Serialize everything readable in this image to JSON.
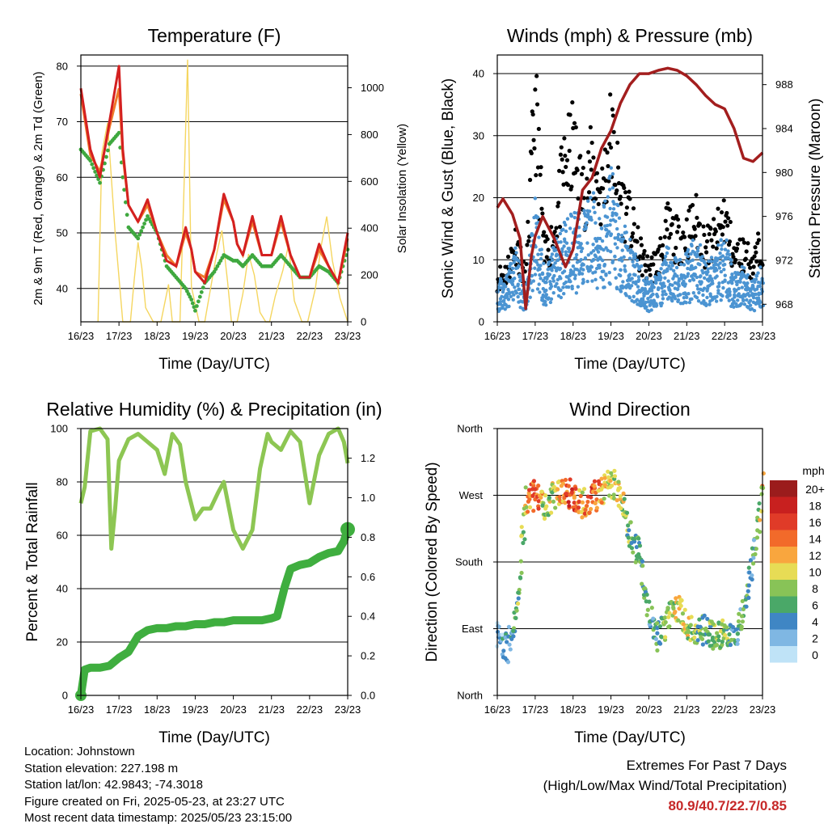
{
  "time_axis": {
    "ticks": [
      "16/23",
      "17/23",
      "18/23",
      "19/23",
      "20/23",
      "21/23",
      "22/23",
      "23/23"
    ],
    "xlabel": "Time (Day/UTC)"
  },
  "speed_legend": {
    "title": "mph",
    "labels": [
      "20+",
      "18",
      "16",
      "14",
      "12",
      "10",
      "8",
      "6",
      "4",
      "2",
      "0"
    ],
    "colors": [
      "#9b1c1c",
      "#c8201f",
      "#e03b28",
      "#f26a2a",
      "#f9a63e",
      "#e7dc55",
      "#88c357",
      "#4aa868",
      "#3f86c4",
      "#7fb7e3",
      "#bfe3f7"
    ]
  },
  "charts": [
    {
      "type": "line",
      "title": "Temperature (F)",
      "ylabel": "2m & 9m T (Red, Orange) & 2m Td (Green)",
      "y2label": "Solar Insolation (Yellow)",
      "ylim": [
        34,
        82
      ],
      "yticks": [
        40,
        50,
        60,
        70,
        80
      ],
      "y2lim": [
        0,
        1140
      ],
      "y2ticks": [
        0,
        200,
        400,
        600,
        800,
        1000
      ],
      "x": [
        0.0,
        0.25,
        0.5,
        0.75,
        1.0,
        1.1,
        1.25,
        1.5,
        1.75,
        2.0,
        2.25,
        2.5,
        2.75,
        2.9,
        3.0,
        3.25,
        3.5,
        3.75,
        4.0,
        4.1,
        4.25,
        4.5,
        4.75,
        5.0,
        5.25,
        5.5,
        5.75,
        6.0,
        6.25,
        6.5,
        6.75,
        7.0
      ],
      "series": [
        {
          "name": "2m T",
          "color": "#d42020",
          "values": [
            76,
            65,
            60,
            70,
            80,
            65,
            55,
            52,
            56,
            50,
            45,
            44,
            51,
            47,
            43,
            41,
            47,
            57,
            52,
            48,
            46,
            53,
            46,
            46,
            53,
            46,
            42,
            42,
            48,
            44,
            41,
            50
          ]
        },
        {
          "name": "9m T",
          "color": "#f07a2a",
          "values": [
            75,
            64,
            61,
            69,
            76,
            64,
            55,
            52,
            55,
            50,
            46,
            44,
            50,
            47,
            43,
            42,
            47,
            56,
            52,
            48,
            46,
            52,
            46,
            46,
            52,
            46,
            42,
            42,
            47,
            44,
            41,
            49
          ]
        },
        {
          "name": "2m Td",
          "color": "#3fa83f",
          "values": [
            65,
            63,
            59,
            66,
            68,
            60,
            51,
            49,
            53,
            50,
            44,
            42,
            40,
            38,
            36,
            41,
            43,
            46,
            45,
            45,
            44,
            46,
            44,
            44,
            46,
            44,
            42,
            42,
            44,
            43,
            41,
            47
          ]
        },
        {
          "name": "Solar Insolation",
          "color": "#f5d660",
          "axis": "y2",
          "x": [
            0.45,
            0.55,
            0.7,
            0.9,
            1.1,
            1.3,
            1.4,
            1.5,
            1.6,
            1.7,
            1.9,
            2.1,
            2.3,
            2.4,
            2.6,
            2.7,
            2.8,
            2.9,
            3.1,
            3.25,
            3.4,
            3.55,
            3.7,
            3.85,
            3.95,
            4.1,
            4.25,
            4.4,
            4.55,
            4.7,
            4.85,
            4.95,
            5.1,
            5.3,
            5.45,
            5.6,
            5.8,
            5.95,
            6.15,
            6.3,
            6.45,
            6.6,
            6.8,
            7.0
          ],
          "values": [
            0,
            720,
            850,
            380,
            0,
            0,
            180,
            340,
            230,
            60,
            0,
            0,
            160,
            0,
            0,
            540,
            1120,
            150,
            0,
            0,
            140,
            280,
            390,
            170,
            0,
            0,
            120,
            290,
            200,
            40,
            0,
            0,
            110,
            220,
            330,
            90,
            0,
            0,
            140,
            320,
            450,
            260,
            100,
            0
          ]
        }
      ]
    },
    {
      "type": "scatter",
      "title": "Winds (mph) & Pressure (mb)",
      "ylabel": "Sonic Wind & Gust (Blue, Black)",
      "y2label": "Station Pressure (Maroon)",
      "ylim": [
        0,
        43
      ],
      "yticks": [
        0,
        10,
        20,
        30,
        40
      ],
      "y2lim": [
        966.4,
        990.7
      ],
      "y2ticks": [
        968,
        972,
        976,
        980,
        984,
        988
      ],
      "x": [
        0.0,
        0.25,
        0.5,
        0.75,
        1.0,
        1.25,
        1.5,
        1.75,
        2.0,
        2.25,
        2.5,
        2.75,
        3.0,
        3.25,
        3.5,
        3.75,
        4.0,
        4.25,
        4.5,
        4.75,
        5.0,
        5.25,
        5.5,
        5.75,
        6.0,
        6.25,
        6.5,
        6.75,
        7.0
      ],
      "series": [
        {
          "name": "Sonic Wind",
          "color": "#4b94d2",
          "values": [
            4,
            5,
            8,
            3,
            14,
            5,
            8,
            10,
            12,
            11,
            14,
            10,
            16,
            11,
            9,
            6,
            4,
            5,
            8,
            6,
            7,
            9,
            6,
            7,
            9,
            5,
            6,
            4,
            6
          ]
        },
        {
          "name": "Gust",
          "color": "#000000",
          "values": [
            7,
            8,
            13,
            6,
            35,
            10,
            14,
            24,
            28,
            20,
            25,
            20,
            30,
            20,
            16,
            11,
            8,
            10,
            15,
            13,
            14,
            16,
            12,
            13,
            17,
            10,
            11,
            9,
            13
          ]
        },
        {
          "name": "Station Pressure",
          "color": "#a31e1e",
          "axis": "y2",
          "x": [
            0.0,
            0.15,
            0.4,
            0.6,
            0.75,
            0.9,
            1.0,
            1.2,
            1.5,
            1.8,
            2.0,
            2.25,
            2.5,
            2.75,
            3.0,
            3.25,
            3.5,
            3.75,
            4.0,
            4.25,
            4.5,
            4.75,
            5.0,
            5.25,
            5.5,
            5.75,
            6.0,
            6.25,
            6.5,
            6.75,
            7.0
          ],
          "values": [
            976.8,
            977.6,
            976.2,
            974.0,
            967.6,
            972.4,
            974.2,
            976.0,
            974.0,
            971.4,
            973.0,
            978.4,
            979.5,
            982.2,
            983.8,
            986.3,
            988.0,
            989.0,
            989.0,
            989.3,
            989.5,
            989.3,
            988.8,
            988.0,
            987.0,
            986.2,
            985.8,
            984.0,
            981.3,
            981.0,
            981.8
          ]
        }
      ]
    },
    {
      "type": "line",
      "title": "Relative Humidity (%) & Precipitation (in)",
      "ylabel": "Percent & Total Rainfall",
      "ylim": [
        0,
        100
      ],
      "yticks": [
        0,
        20,
        40,
        60,
        80,
        100
      ],
      "y2lim": [
        0.0,
        1.35
      ],
      "y2ticks": [
        "0.0",
        "0.2",
        "0.4",
        "0.6",
        "0.8",
        "1.0",
        "1.2"
      ],
      "series": [
        {
          "name": "Relative Humidity",
          "color": "#8dc653",
          "x": [
            0.0,
            0.1,
            0.25,
            0.5,
            0.7,
            0.8,
            0.9,
            1.0,
            1.25,
            1.5,
            1.75,
            2.0,
            2.2,
            2.4,
            2.6,
            2.75,
            3.0,
            3.2,
            3.4,
            3.6,
            3.75,
            4.0,
            4.25,
            4.5,
            4.7,
            4.9,
            5.0,
            5.25,
            5.5,
            5.75,
            6.0,
            6.25,
            6.5,
            6.75,
            6.9,
            7.0
          ],
          "values": [
            72,
            78,
            99,
            100,
            96,
            55,
            70,
            88,
            96,
            98,
            95,
            92,
            83,
            98,
            94,
            80,
            66,
            70,
            70,
            76,
            80,
            62,
            55,
            62,
            85,
            98,
            95,
            92,
            99,
            95,
            72,
            90,
            98,
            100,
            95,
            87
          ]
        },
        {
          "name": "Total Precipitation",
          "color": "#3fae3f",
          "axis": "y2",
          "x": [
            0.0,
            0.1,
            0.25,
            0.5,
            0.75,
            1.0,
            1.25,
            1.5,
            1.75,
            2.0,
            2.25,
            2.5,
            2.75,
            3.0,
            3.25,
            3.5,
            3.75,
            4.0,
            4.25,
            4.5,
            4.75,
            5.0,
            5.15,
            5.35,
            5.5,
            5.75,
            6.0,
            6.25,
            6.5,
            6.75,
            6.9,
            7.0
          ],
          "values": [
            0.0,
            0.13,
            0.14,
            0.14,
            0.15,
            0.19,
            0.22,
            0.3,
            0.33,
            0.34,
            0.34,
            0.35,
            0.35,
            0.36,
            0.36,
            0.37,
            0.37,
            0.38,
            0.38,
            0.38,
            0.38,
            0.39,
            0.4,
            0.55,
            0.64,
            0.66,
            0.67,
            0.7,
            0.72,
            0.73,
            0.78,
            0.84
          ]
        }
      ]
    },
    {
      "type": "scatter",
      "title": "Wind Direction",
      "ylabel": "Direction (Colored By Speed)",
      "yticks": [
        "North",
        "East",
        "South",
        "West",
        "North"
      ],
      "ylim": [
        0,
        360
      ],
      "x": [
        0.0,
        0.25,
        0.5,
        0.75,
        1.0,
        1.25,
        1.5,
        1.75,
        2.0,
        2.25,
        2.5,
        2.75,
        3.0,
        3.25,
        3.5,
        3.75,
        4.0,
        4.25,
        4.5,
        4.75,
        5.0,
        5.25,
        5.5,
        5.75,
        6.0,
        6.25,
        6.5,
        6.75,
        7.0
      ],
      "series": [
        {
          "name": "Wind Direction",
          "values": [
            80,
            60,
            110,
            260,
            270,
            255,
            270,
            275,
            270,
            260,
            265,
            275,
            290,
            270,
            220,
            190,
            110,
            80,
            100,
            120,
            95,
            80,
            90,
            75,
            90,
            80,
            110,
            180,
            280
          ],
          "speeds": [
            2,
            3,
            6,
            10,
            16,
            9,
            8,
            14,
            16,
            11,
            15,
            12,
            10,
            9,
            7,
            6,
            5,
            6,
            8,
            10,
            9,
            7,
            6,
            7,
            8,
            5,
            6,
            4,
            11
          ]
        }
      ]
    }
  ],
  "info": {
    "location": "Location: Johnstown",
    "elevation": "Station elevation: 227.198 m",
    "latlon": "Station lat/lon: 42.9843; -74.3018",
    "created": "Figure created on Fri, 2025-05-23, at 23:27 UTC",
    "recent": "Most recent data timestamp: 2025/05/23 23:15:00"
  },
  "extremes": {
    "line1": "Extremes For Past 7 Days",
    "line2": "(High/Low/Max Wind/Total Precipitation)",
    "values": "80.9/40.7/22.7/0.85"
  }
}
